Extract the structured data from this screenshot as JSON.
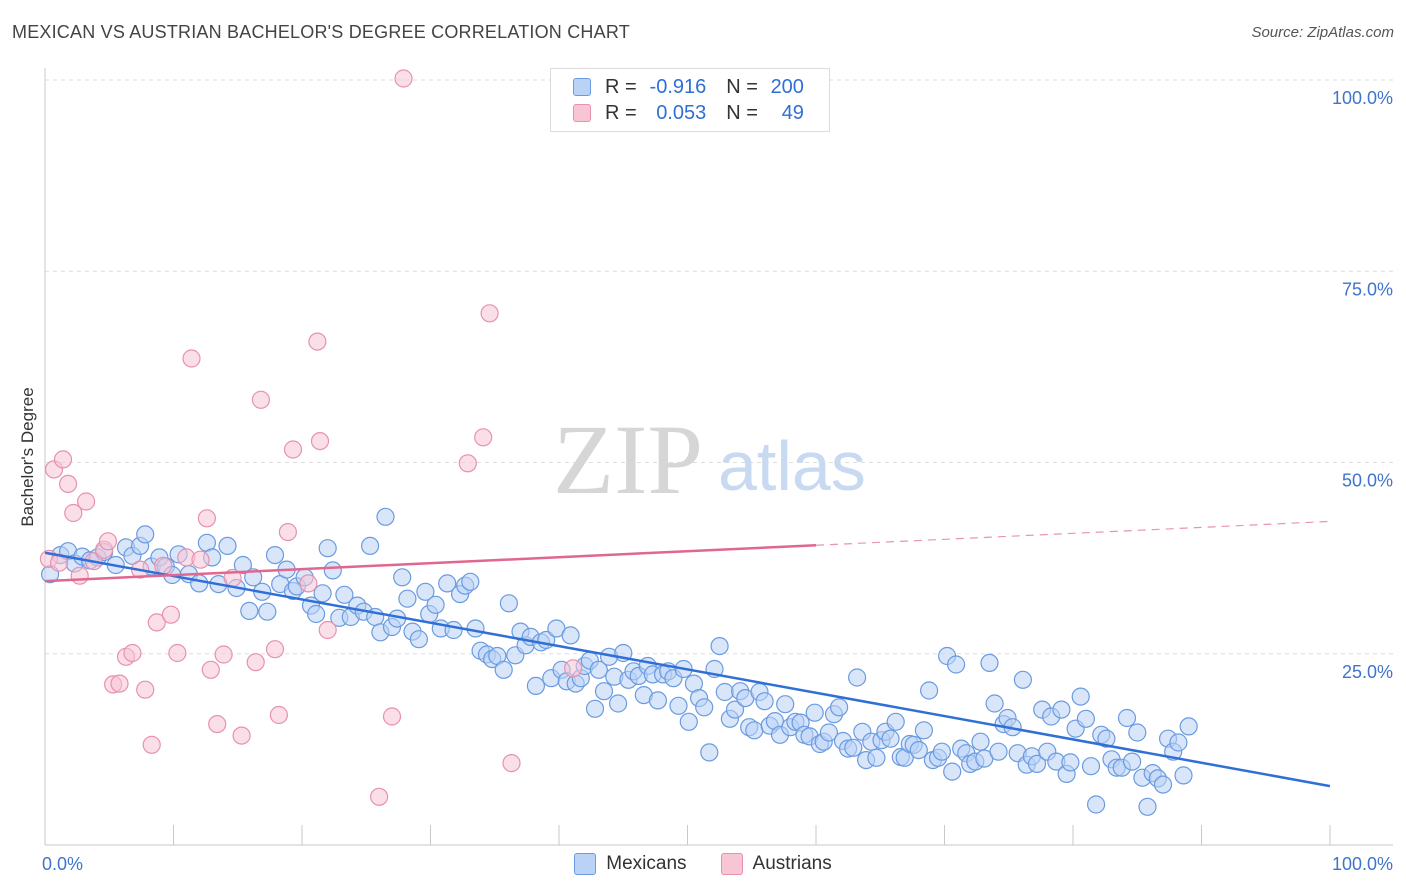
{
  "title": "MEXICAN VS AUSTRIAN BACHELOR'S DEGREE CORRELATION CHART",
  "source": "Source: ZipAtlas.com",
  "watermark": {
    "zip": "ZIP",
    "atlas": "atlas"
  },
  "legend": {
    "rows": [
      {
        "r_key": "R =",
        "r_value": "-0.916",
        "n_key": "N =",
        "n_value": "200",
        "fill": "#b9d2f5",
        "stroke": "#6a9be0"
      },
      {
        "r_key": "R =",
        "r_value": "0.053",
        "n_key": "N =",
        "n_value": "49",
        "fill": "#f8c5d5",
        "stroke": "#e891ad"
      }
    ]
  },
  "bottom_legend": [
    {
      "label": "Mexicans",
      "fill": "#b9d2f5",
      "stroke": "#6a9be0"
    },
    {
      "label": "Austrians",
      "fill": "#f8c5d5",
      "stroke": "#e891ad"
    }
  ],
  "chart_data": {
    "type": "scatter",
    "title": "MEXICAN VS AUSTRIAN BACHELOR'S DEGREE CORRELATION CHART",
    "xlabel": "",
    "ylabel": "Bachelor's Degree",
    "xlim": [
      0,
      100
    ],
    "ylim": [
      0,
      100
    ],
    "x_tick_labels": [
      {
        "value": 0,
        "label": "0.0%"
      },
      {
        "value": 100,
        "label": "100.0%"
      }
    ],
    "y_tick_labels": [
      {
        "value": 25,
        "label": "25.0%"
      },
      {
        "value": 50,
        "label": "50.0%"
      },
      {
        "value": 75,
        "label": "75.0%"
      },
      {
        "value": 100,
        "label": "100.0%"
      }
    ],
    "grid": true,
    "legend_position": "top-center",
    "series": [
      {
        "name": "Mexicans",
        "color": "#6a9be0",
        "fill": "#b9d2f5",
        "r": -0.916,
        "n": 200,
        "trend": {
          "x": [
            0,
            100
          ],
          "y": [
            38.2,
            7.7
          ],
          "color": "#2f6fd6"
        },
        "points": [
          [
            0.4,
            35.4
          ],
          [
            1.2,
            37.9
          ],
          [
            1.8,
            38.4
          ],
          [
            2.3,
            36.8
          ],
          [
            2.9,
            37.7
          ],
          [
            3.5,
            37.2
          ],
          [
            4.1,
            37.6
          ],
          [
            4.6,
            38.3
          ],
          [
            5.5,
            36.6
          ],
          [
            6.3,
            38.9
          ],
          [
            6.8,
            37.8
          ],
          [
            7.4,
            39.1
          ],
          [
            7.8,
            40.6
          ],
          [
            8.3,
            36.4
          ],
          [
            8.9,
            37.6
          ],
          [
            9.4,
            36.4
          ],
          [
            9.9,
            35.3
          ],
          [
            10.4,
            38.0
          ],
          [
            11.2,
            35.4
          ],
          [
            12.0,
            34.2
          ],
          [
            12.6,
            39.5
          ],
          [
            13.0,
            37.6
          ],
          [
            13.5,
            34.1
          ],
          [
            14.2,
            39.1
          ],
          [
            14.9,
            33.6
          ],
          [
            15.4,
            36.6
          ],
          [
            15.9,
            30.6
          ],
          [
            16.2,
            35.0
          ],
          [
            16.9,
            33.1
          ],
          [
            17.3,
            30.5
          ],
          [
            17.9,
            37.9
          ],
          [
            18.3,
            34.1
          ],
          [
            18.8,
            36.0
          ],
          [
            19.3,
            33.2
          ],
          [
            19.6,
            33.8
          ],
          [
            20.2,
            35.0
          ],
          [
            20.7,
            31.3
          ],
          [
            21.1,
            30.2
          ],
          [
            21.6,
            32.9
          ],
          [
            22.0,
            38.8
          ],
          [
            22.4,
            35.9
          ],
          [
            22.9,
            29.7
          ],
          [
            23.3,
            32.7
          ],
          [
            23.8,
            29.8
          ],
          [
            24.3,
            31.3
          ],
          [
            24.8,
            30.5
          ],
          [
            25.3,
            39.1
          ],
          [
            25.7,
            29.8
          ],
          [
            26.1,
            27.8
          ],
          [
            26.5,
            42.9
          ],
          [
            27.0,
            28.5
          ],
          [
            27.4,
            29.6
          ],
          [
            27.8,
            35.0
          ],
          [
            28.2,
            32.2
          ],
          [
            28.6,
            27.9
          ],
          [
            29.1,
            26.9
          ],
          [
            29.6,
            33.1
          ],
          [
            29.9,
            30.2
          ],
          [
            30.4,
            31.4
          ],
          [
            30.8,
            28.3
          ],
          [
            31.3,
            34.2
          ],
          [
            31.8,
            28.1
          ],
          [
            32.3,
            32.8
          ],
          [
            32.7,
            33.9
          ],
          [
            33.1,
            34.4
          ],
          [
            33.5,
            28.3
          ],
          [
            33.9,
            25.4
          ],
          [
            34.4,
            24.9
          ],
          [
            34.8,
            24.3
          ],
          [
            35.2,
            24.7
          ],
          [
            35.7,
            22.9
          ],
          [
            36.1,
            31.6
          ],
          [
            36.6,
            24.8
          ],
          [
            37.0,
            27.9
          ],
          [
            37.4,
            26.1
          ],
          [
            37.8,
            27.2
          ],
          [
            38.2,
            20.8
          ],
          [
            38.6,
            26.5
          ],
          [
            39.0,
            26.8
          ],
          [
            39.4,
            21.8
          ],
          [
            39.8,
            28.3
          ],
          [
            40.2,
            22.9
          ],
          [
            40.6,
            21.4
          ],
          [
            40.9,
            27.4
          ],
          [
            41.3,
            21.1
          ],
          [
            41.7,
            21.8
          ],
          [
            42.0,
            23.4
          ],
          [
            42.4,
            24.1
          ],
          [
            42.8,
            17.8
          ],
          [
            43.1,
            22.9
          ],
          [
            43.5,
            20.1
          ],
          [
            43.9,
            24.6
          ],
          [
            44.3,
            22.0
          ],
          [
            44.6,
            18.5
          ],
          [
            45.0,
            25.1
          ],
          [
            45.4,
            21.6
          ],
          [
            45.8,
            22.7
          ],
          [
            46.2,
            22.1
          ],
          [
            46.6,
            19.6
          ],
          [
            46.9,
            23.4
          ],
          [
            47.3,
            22.3
          ],
          [
            47.7,
            18.9
          ],
          [
            48.1,
            22.3
          ],
          [
            48.5,
            22.7
          ],
          [
            48.9,
            21.8
          ],
          [
            49.3,
            18.2
          ],
          [
            49.7,
            23.0
          ],
          [
            50.1,
            16.1
          ],
          [
            50.5,
            21.1
          ],
          [
            50.9,
            19.2
          ],
          [
            51.3,
            18.0
          ],
          [
            51.7,
            12.1
          ],
          [
            52.1,
            23.0
          ],
          [
            52.5,
            26.0
          ],
          [
            52.9,
            20.0
          ],
          [
            53.3,
            16.5
          ],
          [
            53.7,
            17.7
          ],
          [
            54.1,
            20.1
          ],
          [
            54.5,
            19.2
          ],
          [
            54.8,
            15.4
          ],
          [
            55.2,
            15.0
          ],
          [
            55.6,
            20.0
          ],
          [
            56.0,
            18.8
          ],
          [
            56.4,
            15.6
          ],
          [
            56.8,
            16.2
          ],
          [
            57.2,
            14.4
          ],
          [
            57.6,
            18.4
          ],
          [
            58.0,
            15.4
          ],
          [
            58.4,
            16.1
          ],
          [
            58.8,
            16.0
          ],
          [
            59.1,
            14.4
          ],
          [
            59.5,
            14.2
          ],
          [
            59.9,
            17.3
          ],
          [
            60.3,
            13.2
          ],
          [
            60.6,
            13.5
          ],
          [
            61.0,
            14.7
          ],
          [
            61.4,
            17.1
          ],
          [
            61.8,
            18.0
          ],
          [
            62.1,
            13.6
          ],
          [
            62.5,
            12.6
          ],
          [
            62.9,
            12.7
          ],
          [
            63.2,
            21.9
          ],
          [
            63.6,
            14.8
          ],
          [
            63.9,
            11.1
          ],
          [
            64.3,
            13.5
          ],
          [
            64.7,
            11.4
          ],
          [
            65.1,
            13.7
          ],
          [
            65.4,
            14.8
          ],
          [
            65.8,
            13.9
          ],
          [
            66.2,
            16.1
          ],
          [
            66.6,
            11.5
          ],
          [
            66.9,
            11.4
          ],
          [
            67.3,
            13.2
          ],
          [
            67.6,
            13.1
          ],
          [
            68.0,
            12.4
          ],
          [
            68.4,
            15.0
          ],
          [
            68.8,
            20.2
          ],
          [
            69.1,
            11.1
          ],
          [
            69.5,
            11.4
          ],
          [
            69.8,
            12.2
          ],
          [
            70.2,
            24.7
          ],
          [
            70.6,
            9.6
          ],
          [
            70.9,
            23.6
          ],
          [
            71.3,
            12.6
          ],
          [
            71.7,
            12.0
          ],
          [
            72.0,
            10.6
          ],
          [
            72.4,
            10.9
          ],
          [
            72.8,
            13.5
          ],
          [
            73.1,
            11.3
          ],
          [
            73.5,
            23.8
          ],
          [
            73.9,
            18.5
          ],
          [
            74.2,
            12.2
          ],
          [
            74.6,
            15.8
          ],
          [
            74.9,
            16.6
          ],
          [
            75.3,
            15.4
          ],
          [
            75.7,
            12.0
          ],
          [
            76.1,
            21.6
          ],
          [
            76.4,
            10.5
          ],
          [
            76.8,
            11.6
          ],
          [
            77.2,
            10.6
          ],
          [
            77.6,
            17.7
          ],
          [
            78.0,
            12.2
          ],
          [
            78.3,
            16.8
          ],
          [
            78.7,
            10.9
          ],
          [
            79.1,
            17.7
          ],
          [
            79.5,
            9.3
          ],
          [
            79.8,
            10.8
          ],
          [
            80.2,
            15.2
          ],
          [
            80.6,
            19.4
          ],
          [
            81.0,
            16.5
          ],
          [
            81.4,
            10.3
          ],
          [
            81.8,
            5.3
          ],
          [
            82.2,
            14.4
          ],
          [
            82.6,
            13.9
          ],
          [
            83.0,
            11.2
          ],
          [
            83.4,
            10.1
          ],
          [
            83.8,
            10.1
          ],
          [
            84.2,
            16.6
          ],
          [
            84.6,
            10.9
          ],
          [
            85.0,
            14.7
          ],
          [
            85.4,
            8.8
          ],
          [
            85.8,
            5.0
          ],
          [
            86.2,
            9.4
          ],
          [
            86.6,
            8.7
          ],
          [
            87.0,
            7.9
          ],
          [
            87.4,
            13.9
          ],
          [
            87.8,
            12.2
          ],
          [
            88.2,
            13.4
          ],
          [
            88.6,
            9.1
          ],
          [
            89.0,
            15.5
          ]
        ]
      },
      {
        "name": "Austrians",
        "color": "#e891ad",
        "fill": "#f8c5d5",
        "r": 0.053,
        "n": 49,
        "trend": {
          "x": [
            0,
            100
          ],
          "y": [
            34.5,
            42.3
          ],
          "solid_until_x": 60,
          "color": "#e0678f"
        },
        "points": [
          [
            0.3,
            37.4
          ],
          [
            0.7,
            49.1
          ],
          [
            1.1,
            36.9
          ],
          [
            1.4,
            50.4
          ],
          [
            1.8,
            47.2
          ],
          [
            2.2,
            43.4
          ],
          [
            2.7,
            35.2
          ],
          [
            3.2,
            44.9
          ],
          [
            3.8,
            37.1
          ],
          [
            4.6,
            38.6
          ],
          [
            4.9,
            39.7
          ],
          [
            5.3,
            21.0
          ],
          [
            5.8,
            21.1
          ],
          [
            6.3,
            24.6
          ],
          [
            6.8,
            25.1
          ],
          [
            7.4,
            36.0
          ],
          [
            7.8,
            20.3
          ],
          [
            8.3,
            13.1
          ],
          [
            8.7,
            29.1
          ],
          [
            9.2,
            36.5
          ],
          [
            9.8,
            30.1
          ],
          [
            10.3,
            25.1
          ],
          [
            11.0,
            37.6
          ],
          [
            11.4,
            63.6
          ],
          [
            12.1,
            37.3
          ],
          [
            12.6,
            42.7
          ],
          [
            12.9,
            22.9
          ],
          [
            13.4,
            15.8
          ],
          [
            13.9,
            24.9
          ],
          [
            14.6,
            34.9
          ],
          [
            15.3,
            14.3
          ],
          [
            16.4,
            23.9
          ],
          [
            16.8,
            58.2
          ],
          [
            17.9,
            25.6
          ],
          [
            18.2,
            17.0
          ],
          [
            18.9,
            40.9
          ],
          [
            19.3,
            51.7
          ],
          [
            20.5,
            34.2
          ],
          [
            21.2,
            65.8
          ],
          [
            21.4,
            52.8
          ],
          [
            22.0,
            28.1
          ],
          [
            26.0,
            6.3
          ],
          [
            27.0,
            16.8
          ],
          [
            27.9,
            100.2
          ],
          [
            32.9,
            49.9
          ],
          [
            34.1,
            53.3
          ],
          [
            34.6,
            69.5
          ],
          [
            36.3,
            10.7
          ],
          [
            41.1,
            23.1
          ]
        ]
      }
    ]
  }
}
